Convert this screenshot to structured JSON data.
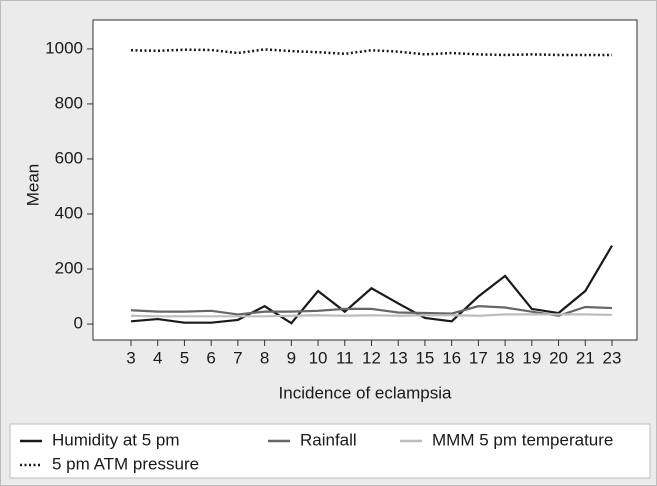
{
  "chart_data": {
    "type": "line",
    "x_label": "Incidence of eclampsia",
    "y_label": "Mean",
    "categories": [
      "3",
      "4",
      "5",
      "6",
      "7",
      "8",
      "9",
      "10",
      "11",
      "12",
      "13",
      "15",
      "16",
      "17",
      "18",
      "19",
      "20",
      "21",
      "23"
    ],
    "series": [
      {
        "name": "Humidity at 5 pm",
        "color": "#1a1a1a",
        "line_style": "solid",
        "values": [
          10,
          18,
          5,
          5,
          15,
          65,
          3,
          120,
          45,
          130,
          75,
          22,
          10,
          100,
          175,
          55,
          40,
          120,
          285
        ]
      },
      {
        "name": "Rainfall",
        "color": "#666666",
        "line_style": "solid",
        "values": [
          50,
          45,
          45,
          48,
          35,
          45,
          45,
          48,
          55,
          55,
          42,
          40,
          38,
          65,
          60,
          45,
          30,
          62,
          58
        ]
      },
      {
        "name": "MMM 5 pm temperature",
        "color": "#bdbdbd",
        "line_style": "solid",
        "values": [
          30,
          28,
          28,
          28,
          28,
          28,
          30,
          32,
          30,
          32,
          30,
          32,
          32,
          30,
          35,
          35,
          35,
          35,
          33
        ]
      },
      {
        "name": "5 pm ATM pressure",
        "color": "#1a1a1a",
        "line_style": "dotted",
        "values": [
          995,
          993,
          997,
          996,
          985,
          998,
          992,
          988,
          982,
          995,
          990,
          980,
          985,
          980,
          978,
          980,
          978,
          978,
          978
        ]
      }
    ],
    "ylim": [
      -58,
      1105
    ],
    "yticks": [
      0,
      200,
      400,
      600,
      800,
      1000
    ]
  }
}
